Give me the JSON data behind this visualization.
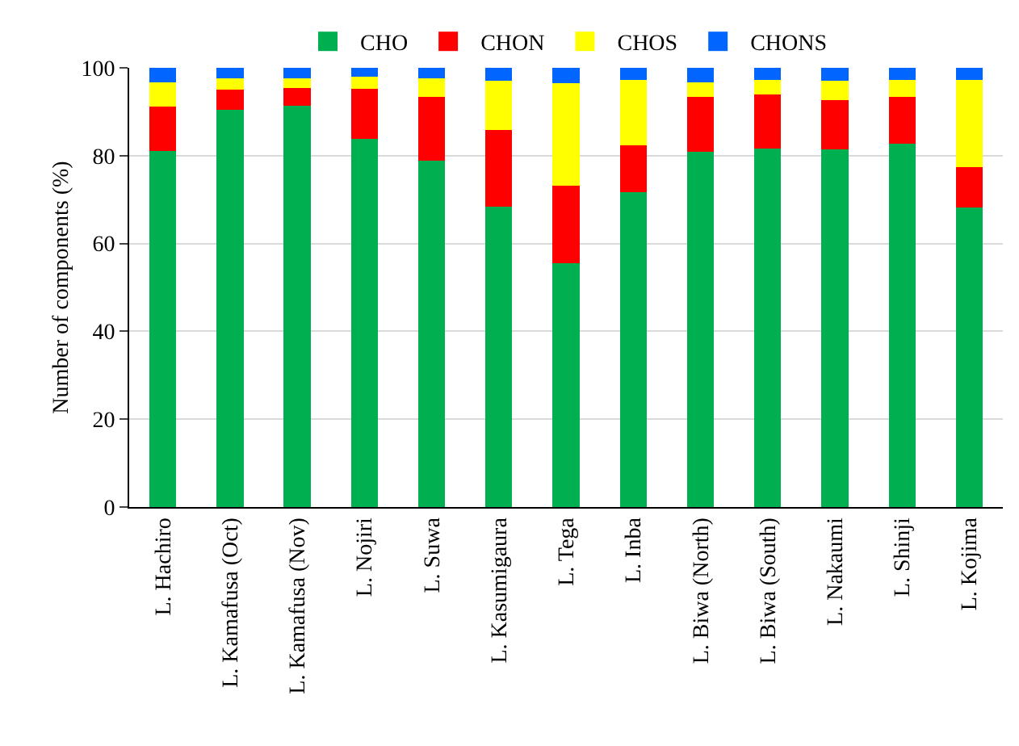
{
  "chart_data": {
    "type": "bar",
    "stacked": true,
    "ylabel": "Number of components (%)",
    "categories": [
      "L. Hachiro",
      "L. Kamafusa (Oct)",
      "L. Kamafusa (Nov)",
      "L. Nojiri",
      "L. Suwa",
      "L. Kasumigaura",
      "L. Tega",
      "L. Inba",
      "L. Biwa (North)",
      "L. Biwa (South)",
      "L. Nakaumi",
      "L. Shinji",
      "L. Kojima"
    ],
    "series": [
      {
        "name": "CHO",
        "color": "#00b050",
        "values": [
          81.1,
          90.4,
          91.4,
          83.9,
          78.9,
          68.3,
          55.5,
          71.7,
          80.9,
          81.7,
          81.5,
          82.7,
          68.2
        ]
      },
      {
        "name": "CHON",
        "color": "#ff0000",
        "values": [
          10.1,
          4.7,
          4.0,
          11.4,
          14.4,
          17.5,
          17.6,
          10.6,
          12.4,
          12.3,
          11.2,
          10.7,
          9.1
        ]
      },
      {
        "name": "CHOS",
        "color": "#ffff00",
        "values": [
          5.5,
          2.5,
          2.2,
          2.7,
          4.3,
          11.3,
          23.4,
          15.0,
          3.4,
          3.3,
          4.3,
          3.9,
          20.0
        ]
      },
      {
        "name": "CHONS",
        "color": "#0066ff",
        "values": [
          3.3,
          2.4,
          2.4,
          2.0,
          2.4,
          2.9,
          3.5,
          2.7,
          3.3,
          2.7,
          3.0,
          2.7,
          2.7
        ]
      }
    ],
    "ylim": [
      0,
      100
    ],
    "yticks": [
      0,
      20,
      40,
      60,
      80,
      100
    ],
    "grid": "y",
    "legend": "top"
  }
}
